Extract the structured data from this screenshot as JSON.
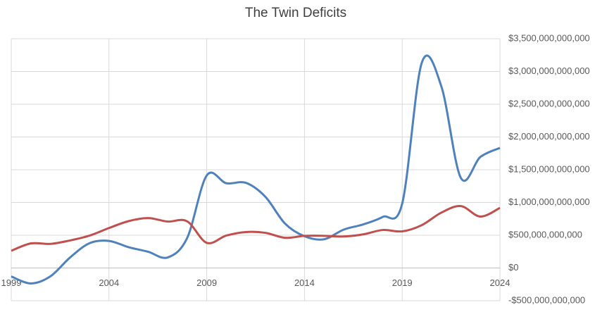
{
  "chart_data": {
    "type": "line",
    "title": "The Twin Deficits",
    "x": [
      1999,
      2000,
      2001,
      2002,
      2003,
      2004,
      2005,
      2006,
      2007,
      2008,
      2009,
      2010,
      2011,
      2012,
      2013,
      2014,
      2015,
      2016,
      2017,
      2018,
      2019,
      2020,
      2021,
      2022,
      2023,
      2024
    ],
    "series": [
      {
        "color": "#4f81bd",
        "values": [
          -130000000000,
          -236000000000,
          -128000000000,
          158000000000,
          378000000000,
          413000000000,
          318000000000,
          248000000000,
          161000000000,
          459000000000,
          1413000000000,
          1294000000000,
          1300000000000,
          1087000000000,
          680000000000,
          485000000000,
          438000000000,
          585000000000,
          665000000000,
          779000000000,
          984000000000,
          3132000000000,
          2775000000000,
          1375000000000,
          1695000000000,
          1833000000000
        ]
      },
      {
        "color": "#c0504d",
        "values": [
          263000000000,
          375000000000,
          368000000000,
          420000000000,
          494000000000,
          610000000000,
          715000000000,
          762000000000,
          709000000000,
          712000000000,
          384000000000,
          495000000000,
          549000000000,
          537000000000,
          461000000000,
          490000000000,
          491000000000,
          481000000000,
          513000000000,
          580000000000,
          559000000000,
          654000000000,
          845000000000,
          945000000000,
          785000000000,
          918000000000
        ]
      }
    ],
    "xlim": [
      1999,
      2024
    ],
    "xticks": [
      1999,
      2004,
      2009,
      2014,
      2019,
      2024
    ],
    "ylim": [
      -500000000000,
      3500000000000
    ],
    "yticks": [
      {
        "value": -500000000000,
        "label": "-$500,000,000,000"
      },
      {
        "value": 0,
        "label": "$0"
      },
      {
        "value": 500000000000,
        "label": "$500,000,000,000"
      },
      {
        "value": 1000000000000,
        "label": "$1,000,000,000,000"
      },
      {
        "value": 1500000000000,
        "label": "$1,500,000,000,000"
      },
      {
        "value": 2000000000000,
        "label": "$2,000,000,000,000"
      },
      {
        "value": 2500000000000,
        "label": "$2,500,000,000,000"
      },
      {
        "value": 3000000000000,
        "label": "$3,000,000,000,000"
      },
      {
        "value": 3500000000000,
        "label": "$3,500,000,000,000"
      }
    ],
    "grid": true,
    "y_axis_side": "right",
    "smooth": true
  }
}
